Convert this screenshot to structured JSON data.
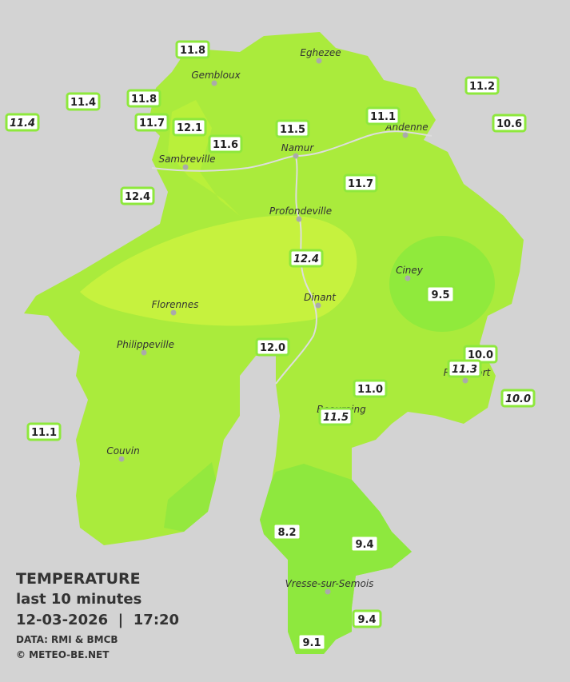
{
  "legend": {
    "title": "TEMPERATURE",
    "period": "last 10 minutes",
    "datetime": "12-03-2026  |  17:20",
    "source": "DATA: RMI & BMCB",
    "copyright": "© METEO-BE.NET"
  },
  "cities": [
    "Eghezee",
    "Gembloux",
    "Andenne",
    "Namur",
    "Sambreville",
    "Profondeville",
    "Ciney",
    "Dinant",
    "Florennes",
    "Philippeville",
    "Couvin",
    "Beauraing",
    "Rochefort",
    "Vresse-sur-Semois"
  ],
  "stations": [
    {
      "label": "11.8",
      "italic": false
    },
    {
      "label": "11.4",
      "italic": false
    },
    {
      "label": "11.4",
      "italic": true
    },
    {
      "label": "11.8",
      "italic": false
    },
    {
      "label": "11.7",
      "italic": false
    },
    {
      "label": "12.1",
      "italic": false
    },
    {
      "label": "11.6",
      "italic": false
    },
    {
      "label": "11.5",
      "italic": false
    },
    {
      "label": "11.1",
      "italic": false
    },
    {
      "label": "11.2",
      "italic": false
    },
    {
      "label": "10.6",
      "italic": false
    },
    {
      "label": "12.4",
      "italic": false
    },
    {
      "label": "11.7",
      "italic": false
    },
    {
      "label": "12.4",
      "italic": true
    },
    {
      "label": "9.5",
      "italic": false
    },
    {
      "label": "12.0",
      "italic": false
    },
    {
      "label": "10.0",
      "italic": false
    },
    {
      "label": "11.3",
      "italic": true
    },
    {
      "label": "10.0",
      "italic": true
    },
    {
      "label": "11.0",
      "italic": false
    },
    {
      "label": "11.5",
      "italic": true
    },
    {
      "label": "11.1",
      "italic": false
    },
    {
      "label": "8.2",
      "italic": false
    },
    {
      "label": "9.4",
      "italic": false
    },
    {
      "label": "9.4",
      "italic": false
    },
    {
      "label": "9.1",
      "italic": false
    }
  ]
}
